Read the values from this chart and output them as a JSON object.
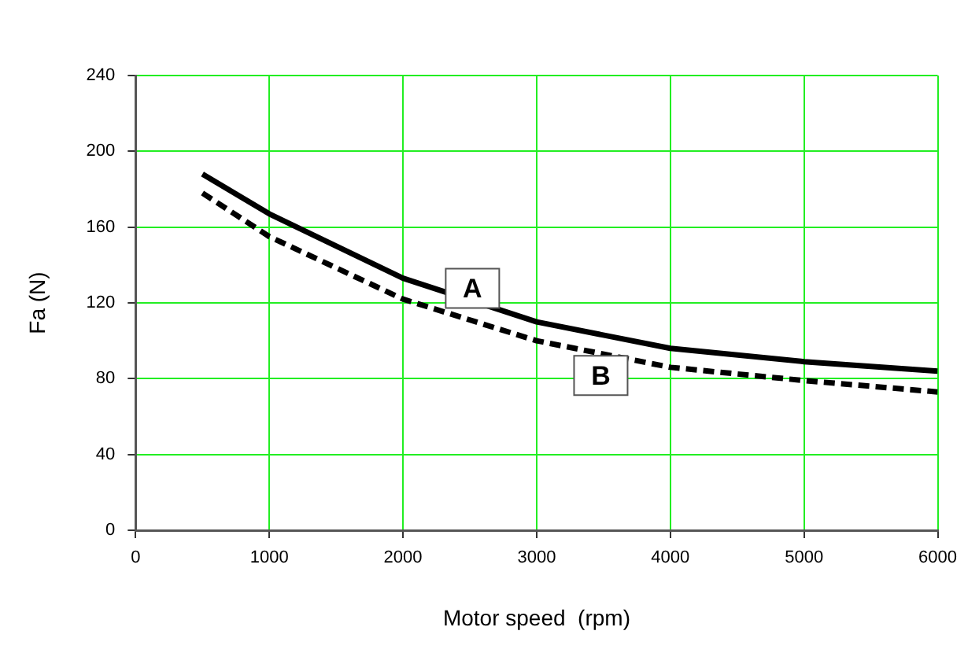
{
  "chart_data": {
    "type": "line",
    "xlabel": "Motor speed  (rpm)",
    "ylabel": "Fa (N)",
    "x": [
      500,
      1000,
      2000,
      3000,
      4000,
      5000,
      6000
    ],
    "series": [
      {
        "name": "A",
        "color": "#000000",
        "line_style": "solid",
        "values": [
          188,
          167,
          133,
          110,
          96,
          89,
          84
        ]
      },
      {
        "name": "B",
        "color": "#000000",
        "line_style": "dashed",
        "values": [
          178,
          155,
          122,
          100,
          86,
          79,
          73
        ]
      }
    ],
    "xlim": [
      0,
      6000
    ],
    "xticks": [
      0,
      1000,
      2000,
      3000,
      4000,
      5000,
      6000
    ],
    "ylim": [
      0,
      240
    ],
    "yticks": [
      0,
      40,
      80,
      120,
      160,
      200,
      240
    ],
    "grid": true,
    "legend": false,
    "marker": "none"
  }
}
